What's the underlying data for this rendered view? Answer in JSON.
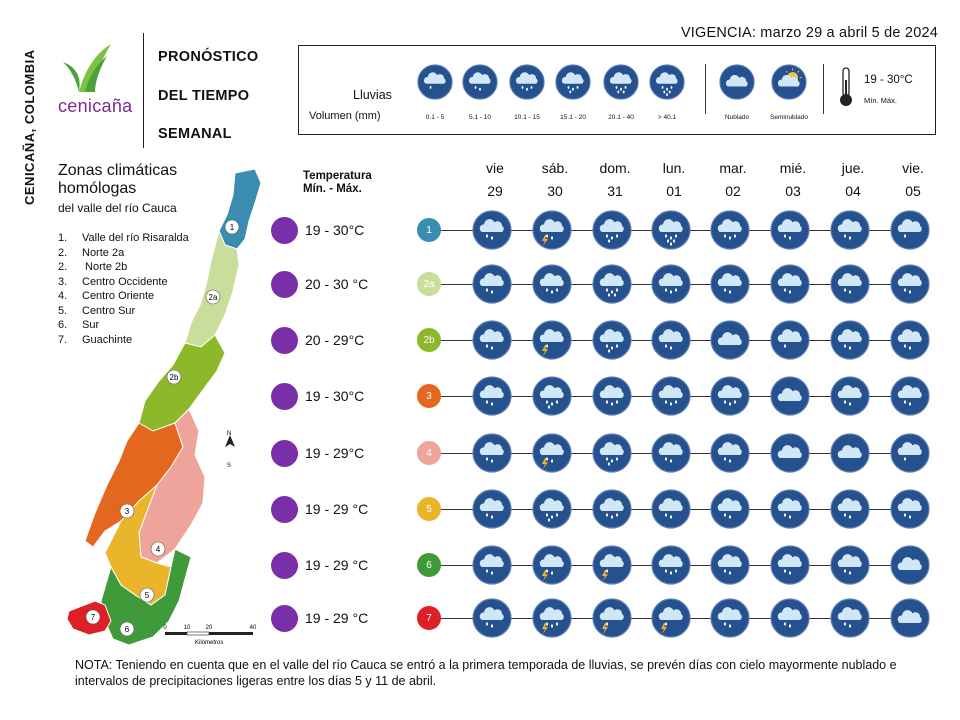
{
  "vertical_title": "CENICAÑA, COLOMBIA",
  "brand": {
    "name": "cenicaña"
  },
  "title_lines": [
    "PRONÓSTICO",
    "DEL TIEMPO",
    "SEMANAL"
  ],
  "vigencia": "VIGENCIA: marzo 29 a abril 5 de 2024",
  "legend": {
    "lluvias_label": "Lluvias",
    "volumen_label": "Volumen (mm)",
    "rain_items": [
      {
        "label": "0.1 - 5",
        "icon": "rain-1-icon",
        "drops": 1
      },
      {
        "label": "5.1 - 10",
        "icon": "rain-2-icon",
        "drops": 2
      },
      {
        "label": "10.1 - 15",
        "icon": "rain-3-icon",
        "drops": 3
      },
      {
        "label": "15.1 - 20",
        "icon": "rain-4-icon",
        "drops": 4
      },
      {
        "label": "20.1 - 40",
        "icon": "rain-5-icon",
        "drops": 5
      },
      {
        "label": "> 40.1",
        "icon": "rain-6-icon",
        "drops": 6
      }
    ],
    "sky_items": [
      {
        "label": "Nublado",
        "icon": "cloud-icon"
      },
      {
        "label": "Seminublado",
        "icon": "partly-cloudy-icon"
      }
    ],
    "temp_range": "19 - 30°C",
    "temp_sub": "Mín.  Máx."
  },
  "zones": {
    "title_line1": "Zonas climáticas",
    "title_line2": "homólogas",
    "subtitle": "del valle del río Cauca",
    "list": [
      {
        "n": "1.",
        "name": "Valle del río Risaralda"
      },
      {
        "n": "2.",
        "name": "Norte 2a"
      },
      {
        "n": "2.",
        "name": " Norte 2b"
      },
      {
        "n": "3.",
        "name": "Centro Occidente"
      },
      {
        "n": "4.",
        "name": "Centro Oriente"
      },
      {
        "n": "5.",
        "name": "Centro Sur"
      },
      {
        "n": "6.",
        "name": "Sur"
      },
      {
        "n": "7.",
        "name": "Guachinte"
      }
    ],
    "map_labels": [
      "1",
      "2a",
      "2b",
      "3",
      "4",
      "5",
      "6",
      "7"
    ],
    "scale_ticks": [
      "0",
      "10",
      "20",
      "40"
    ],
    "scale_unit": "Kilómetros",
    "north_n": "N",
    "north_s": "S"
  },
  "temp_header_line1": "Temperatura",
  "temp_header_line2": "Mín. -  Máx.",
  "days": [
    {
      "dow": "vie",
      "date": "29"
    },
    {
      "dow": "sáb.",
      "date": "30"
    },
    {
      "dow": "dom.",
      "date": "31"
    },
    {
      "dow": "lun.",
      "date": "01"
    },
    {
      "dow": "mar.",
      "date": "02"
    },
    {
      "dow": "mié.",
      "date": "03"
    },
    {
      "dow": "jue.",
      "date": "04"
    },
    {
      "dow": "vie.",
      "date": "05"
    }
  ],
  "rows": [
    {
      "zone": "1",
      "color": "#3a8db0",
      "temp": "19 - 30°C",
      "forecast": [
        {
          "d": 2
        },
        {
          "d": 2,
          "storm": true
        },
        {
          "d": 4
        },
        {
          "d": 6
        },
        {
          "d": 3
        },
        {
          "d": 2
        },
        {
          "d": 2
        },
        {
          "d": 1
        }
      ]
    },
    {
      "zone": "2a",
      "color": "#c8de9a",
      "temp": "20 - 30 °C",
      "forecast": [
        {
          "d": 2
        },
        {
          "d": 3
        },
        {
          "d": 5
        },
        {
          "d": 3
        },
        {
          "d": 2
        },
        {
          "d": 2
        },
        {
          "d": 2
        },
        {
          "d": 2
        }
      ]
    },
    {
      "zone": "2b",
      "color": "#8cb82a",
      "temp": "20 - 29°C",
      "forecast": [
        {
          "d": 2
        },
        {
          "d": 1,
          "storm": true
        },
        {
          "d": 4
        },
        {
          "d": 2
        },
        {
          "d": 0
        },
        {
          "d": 1
        },
        {
          "d": 2
        },
        {
          "d": 2
        }
      ]
    },
    {
      "zone": "3",
      "color": "#e4671f",
      "temp": "19 - 30°C",
      "forecast": [
        {
          "d": 2
        },
        {
          "d": 4
        },
        {
          "d": 3
        },
        {
          "d": 3
        },
        {
          "d": 3
        },
        {
          "d": 0
        },
        {
          "d": 2
        },
        {
          "d": 2
        }
      ]
    },
    {
      "zone": "4",
      "color": "#eea49a",
      "temp": "19 - 29°C",
      "forecast": [
        {
          "d": 2
        },
        {
          "d": 2,
          "storm": true
        },
        {
          "d": 4
        },
        {
          "d": 2
        },
        {
          "d": 2
        },
        {
          "d": 0
        },
        {
          "d": 0
        },
        {
          "d": 1
        }
      ]
    },
    {
      "zone": "5",
      "color": "#eab52b",
      "temp": "19 - 29 °C",
      "forecast": [
        {
          "d": 2
        },
        {
          "d": 4
        },
        {
          "d": 3
        },
        {
          "d": 2
        },
        {
          "d": 2
        },
        {
          "d": 2
        },
        {
          "d": 2
        },
        {
          "d": 2
        }
      ]
    },
    {
      "zone": "6",
      "color": "#3f9b3a",
      "temp": "19 - 29 °C",
      "forecast": [
        {
          "d": 2
        },
        {
          "d": 2,
          "storm": true
        },
        {
          "d": 1,
          "storm": true
        },
        {
          "d": 3
        },
        {
          "d": 2
        },
        {
          "d": 2
        },
        {
          "d": 2
        },
        {
          "d": 0
        }
      ]
    },
    {
      "zone": "7",
      "color": "#dd1f26",
      "temp": "19 - 29 °C",
      "forecast": [
        {
          "d": 2
        },
        {
          "d": 3,
          "storm": true
        },
        {
          "d": 1,
          "storm": true
        },
        {
          "d": 1,
          "storm": true
        },
        {
          "d": 2
        },
        {
          "d": 2
        },
        {
          "d": 2
        },
        {
          "d": 0
        }
      ]
    }
  ],
  "note": "NOTA: Teniendo en cuenta que en el valle del río Cauca se entró a la primera temporada de lluvias, se prevén días con cielo mayormente nublado e intervalos de precipitaciones ligeras entre los días 5 y 11 de abril.",
  "colors": {
    "icon_bg": "#26518f",
    "icon_ring": "#5e7db0",
    "cloud": "#cfe7f7",
    "drop": "#ffffff",
    "storm": "#f0b323",
    "temp_dot": "#7a2ea7",
    "logo_green": "#6dbb3a",
    "logo_purple": "#7a2c8d"
  }
}
